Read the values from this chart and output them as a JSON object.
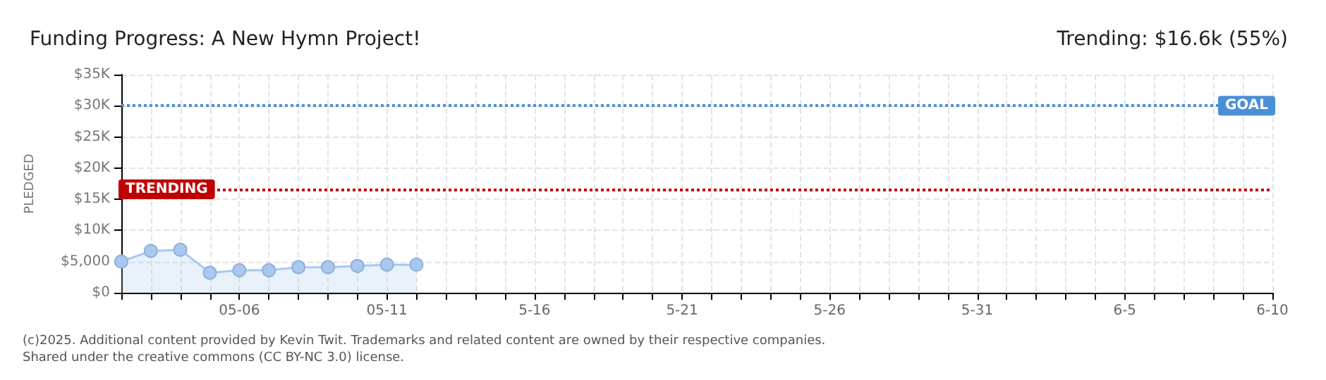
{
  "chart_data": {
    "type": "area",
    "title": "Funding Progress: A New Hymn Project!",
    "subtitle": "Trending: $16.6k (55%)",
    "ylabel": "PLEDGED",
    "categories": [
      null,
      null,
      null,
      null,
      "05-06",
      null,
      null,
      null,
      null,
      "05-11",
      null,
      null,
      null,
      null,
      "5-16",
      null,
      null,
      null,
      null,
      "5-21",
      null,
      null,
      null,
      null,
      "5-26",
      null,
      null,
      null,
      null,
      "5-31",
      null,
      null,
      null,
      null,
      "6-5",
      null,
      null,
      null,
      null,
      "6-10"
    ],
    "series": [
      {
        "color": "#a8c8f0",
        "values": [
          5000,
          6700,
          6900,
          3200,
          3600,
          3600,
          4100,
          4100,
          4300,
          4500,
          4500,
          null,
          null,
          null,
          null,
          null,
          null,
          null,
          null,
          null,
          null,
          null,
          null,
          null,
          null,
          null,
          null,
          null,
          null,
          null,
          null,
          null,
          null,
          null,
          null,
          null,
          null,
          null,
          null,
          null
        ]
      }
    ],
    "ylim": [
      0,
      35000
    ],
    "yticks": [
      {
        "value": 0,
        "label": "$0"
      },
      {
        "value": 5000,
        "label": "$5,000"
      },
      {
        "value": 10000,
        "label": "$10K"
      },
      {
        "value": 15000,
        "label": "$15K"
      },
      {
        "value": 20000,
        "label": "$20K"
      },
      {
        "value": 25000,
        "label": "$25K"
      },
      {
        "value": 30000,
        "label": "$30K"
      },
      {
        "value": 35000,
        "label": "$35K"
      }
    ],
    "ref_lines": [
      {
        "axis": "y",
        "value": 30000,
        "label": "GOAL",
        "color": "#4a90d9",
        "line_style": "dotted"
      },
      {
        "axis": "y",
        "value": 16600,
        "label": "TRENDING",
        "color": "#c00000",
        "line_style": "dotted"
      }
    ],
    "grid": true,
    "marker": "circle",
    "annotations": [
      "(c)2025. Additional content provided by Kevin Twit. Trademarks and related content are owned by their respective companies.",
      "Shared under the creative commons (CC BY-NC 3.0) license."
    ]
  }
}
